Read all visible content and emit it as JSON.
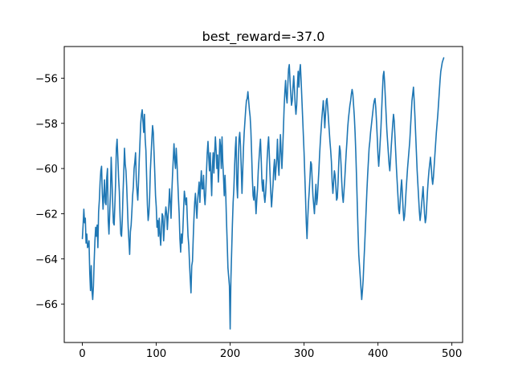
{
  "chart_data": {
    "type": "line",
    "title": "best_reward=-37.0",
    "xlabel": "",
    "ylabel": "",
    "xlim": [
      -24.5,
      514.5
    ],
    "ylim": [
      -67.7,
      -54.6
    ],
    "xticks": [
      0,
      100,
      200,
      300,
      400,
      500
    ],
    "yticks": [
      -66,
      -64,
      -62,
      -60,
      -58,
      -56
    ],
    "xtick_labels": [
      "0",
      "100",
      "200",
      "300",
      "400",
      "500"
    ],
    "ytick_labels": [
      "−66",
      "−64",
      "−62",
      "−60",
      "−58",
      "−56"
    ],
    "grid": false,
    "legend": "none",
    "line_color": "#1f77b4",
    "series": [
      {
        "values": [
          -63.1,
          -62.5,
          -61.8,
          -62.4,
          -62.2,
          -63.3,
          -62.9,
          -63.5,
          -63.4,
          -63.2,
          -64.6,
          -65.4,
          -64.3,
          -65.4,
          -65.8,
          -65.2,
          -64.1,
          -63.2,
          -62.6,
          -63.0,
          -62.5,
          -63.5,
          -61.9,
          -61.4,
          -60.6,
          -60.1,
          -59.9,
          -61.1,
          -61.8,
          -61.2,
          -60.5,
          -61.5,
          -61.6,
          -60.4,
          -60.0,
          -62.3,
          -62.9,
          -62.0,
          -61.1,
          -59.5,
          -60.4,
          -61.5,
          -62.4,
          -62.5,
          -61.6,
          -60.6,
          -59.1,
          -58.7,
          -59.5,
          -60.4,
          -61.0,
          -62.1,
          -62.9,
          -63.0,
          -62.3,
          -61.1,
          -60.2,
          -59.1,
          -59.8,
          -60.1,
          -60.8,
          -61.7,
          -62.6,
          -63.2,
          -63.8,
          -62.8,
          -62.5,
          -61.9,
          -61.2,
          -60.8,
          -60.0,
          -59.7,
          -59.3,
          -60.5,
          -61.0,
          -61.4,
          -60.6,
          -59.6,
          -58.8,
          -58.0,
          -57.6,
          -57.4,
          -57.9,
          -58.4,
          -57.6,
          -58.7,
          -59.2,
          -60.4,
          -61.6,
          -62.3,
          -62.0,
          -61.3,
          -60.1,
          -59.4,
          -58.7,
          -58.1,
          -58.4,
          -59.3,
          -60.2,
          -61.2,
          -61.7,
          -62.6,
          -62.3,
          -63.0,
          -62.2,
          -62.9,
          -63.4,
          -62.7,
          -62.0,
          -62.1,
          -63.2,
          -62.6,
          -62.1,
          -61.7,
          -62.0,
          -62.7,
          -62.1,
          -61.6,
          -60.9,
          -61.5,
          -62.2,
          -61.1,
          -60.3,
          -59.6,
          -58.9,
          -59.6,
          -60.0,
          -59.1,
          -59.7,
          -60.5,
          -61.3,
          -62.0,
          -63.1,
          -63.7,
          -62.9,
          -63.3,
          -62.7,
          -61.8,
          -61.0,
          -61.3,
          -61.6,
          -61.3,
          -62.2,
          -63.0,
          -63.4,
          -64.2,
          -64.9,
          -65.5,
          -64.3,
          -64.1,
          -63.1,
          -62.2,
          -61.5,
          -61.1,
          -61.7,
          -62.2,
          -61.4,
          -61.0,
          -60.6,
          -61.5,
          -60.7,
          -60.1,
          -60.9,
          -60.9,
          -60.3,
          -61.2,
          -61.6,
          -61.0,
          -60.1,
          -59.3,
          -58.8,
          -59.5,
          -60.1,
          -59.3,
          -60.3,
          -61.2,
          -59.9,
          -59.3,
          -60.2,
          -59.3,
          -58.6,
          -59.2,
          -60.0,
          -59.4,
          -60.6,
          -59.8,
          -58.7,
          -59.0,
          -60.0,
          -58.6,
          -59.7,
          -60.4,
          -61.2,
          -60.3,
          -61.1,
          -62.3,
          -63.3,
          -64.4,
          -64.8,
          -65.2,
          -67.1,
          -64.9,
          -63.7,
          -62.5,
          -61.5,
          -60.9,
          -59.9,
          -59.1,
          -58.6,
          -60.7,
          -61.3,
          -59.7,
          -58.7,
          -58.4,
          -59.0,
          -60.0,
          -61.1,
          -60.1,
          -59.1,
          -58.4,
          -57.9,
          -57.4,
          -57.0,
          -56.9,
          -56.6,
          -57.0,
          -57.4,
          -57.7,
          -58.3,
          -59.3,
          -60.4,
          -61.2,
          -61.4,
          -60.8,
          -61.3,
          -62.0,
          -61.4,
          -60.9,
          -60.1,
          -59.6,
          -59.1,
          -58.7,
          -59.6,
          -60.6,
          -61.0,
          -60.5,
          -61.2,
          -61.5,
          -61.1,
          -60.5,
          -59.6,
          -59.0,
          -58.6,
          -59.4,
          -60.3,
          -61.1,
          -61.7,
          -61.2,
          -60.7,
          -60.0,
          -59.6,
          -60.5,
          -60.0,
          -59.6,
          -58.7,
          -59.8,
          -60.3,
          -59.4,
          -58.5,
          -59.3,
          -60.0,
          -59.2,
          -58.3,
          -57.3,
          -56.6,
          -56.1,
          -56.8,
          -57.1,
          -56.3,
          -55.6,
          -55.4,
          -56.1,
          -56.7,
          -57.2,
          -57.0,
          -56.4,
          -55.9,
          -56.5,
          -57.2,
          -57.6,
          -57.2,
          -56.3,
          -55.7,
          -56.4,
          -55.7,
          -55.4,
          -56.1,
          -56.9,
          -57.7,
          -58.5,
          -59.3,
          -60.3,
          -61.3,
          -62.4,
          -63.1,
          -62.2,
          -61.5,
          -61.0,
          -60.4,
          -59.7,
          -59.8,
          -60.5,
          -61.2,
          -61.6,
          -62.0,
          -61.3,
          -60.7,
          -61.6,
          -61.3,
          -60.7,
          -60.1,
          -59.4,
          -58.8,
          -58.3,
          -57.8,
          -57.4,
          -57.0,
          -57.5,
          -58.2,
          -57.6,
          -57.0,
          -56.9,
          -57.3,
          -57.8,
          -58.3,
          -58.8,
          -59.2,
          -59.7,
          -60.6,
          -61.1,
          -60.6,
          -60.1,
          -60.3,
          -60.8,
          -61.4,
          -61.3,
          -60.6,
          -59.7,
          -59.0,
          -59.2,
          -59.8,
          -60.6,
          -61.2,
          -61.5,
          -61.0,
          -60.5,
          -59.9,
          -59.3,
          -58.8,
          -58.2,
          -57.8,
          -57.5,
          -57.2,
          -57.0,
          -56.7,
          -56.5,
          -56.7,
          -57.2,
          -57.7,
          -58.4,
          -59.3,
          -60.4,
          -61.6,
          -62.8,
          -63.8,
          -64.3,
          -64.8,
          -65.3,
          -65.8,
          -65.4,
          -64.9,
          -64.1,
          -63.4,
          -62.6,
          -61.8,
          -61.0,
          -60.3,
          -59.7,
          -59.1,
          -58.8,
          -58.4,
          -58.1,
          -57.8,
          -57.5,
          -57.2,
          -57.0,
          -56.9,
          -57.3,
          -57.9,
          -58.6,
          -59.4,
          -59.9,
          -59.4,
          -58.8,
          -58.2,
          -57.4,
          -56.6,
          -55.9,
          -55.7,
          -56.2,
          -56.9,
          -57.6,
          -58.3,
          -58.8,
          -59.3,
          -59.8,
          -60.1,
          -59.6,
          -59.0,
          -58.5,
          -58.0,
          -57.6,
          -57.9,
          -58.6,
          -59.3,
          -60.0,
          -60.6,
          -61.2,
          -61.8,
          -62.0,
          -61.5,
          -60.9,
          -60.5,
          -61.1,
          -61.8,
          -62.3,
          -62.1,
          -61.6,
          -61.0,
          -60.5,
          -60.0,
          -59.6,
          -59.2,
          -58.8,
          -58.2,
          -57.6,
          -57.0,
          -56.7,
          -56.4,
          -57.0,
          -57.7,
          -58.5,
          -59.3,
          -60.1,
          -60.7,
          -61.3,
          -61.9,
          -62.3,
          -62.0,
          -61.6,
          -61.2,
          -60.8,
          -61.4,
          -62.0,
          -62.4,
          -62.2,
          -61.6,
          -61.0,
          -60.5,
          -60.1,
          -59.8,
          -59.5,
          -59.9,
          -60.4,
          -60.7,
          -60.4,
          -59.9,
          -59.4,
          -58.9,
          -58.4,
          -58.0,
          -57.6,
          -57.1,
          -56.6,
          -56.1,
          -55.7,
          -55.5,
          -55.3,
          -55.2,
          -55.1
        ]
      }
    ]
  }
}
